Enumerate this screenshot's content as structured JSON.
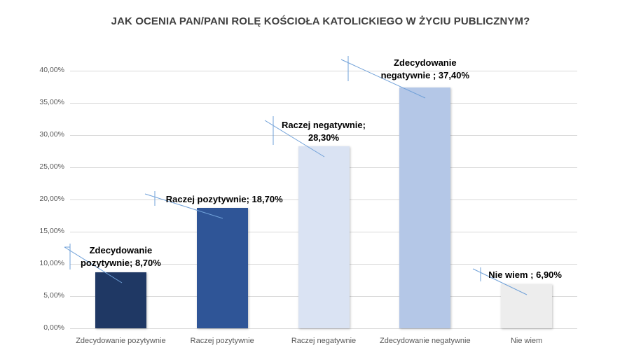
{
  "chart_data": {
    "type": "bar",
    "title": "JAK OCENIA PAN/PANI ROLĘ KOŚCIOŁA KATOLICKIEGO W ŻYCIU PUBLICZNYM?",
    "categories": [
      "Zdecydowanie pozytywnie",
      "Raczej pozytywnie",
      "Raczej negatywnie",
      "Zdecydowanie negatywnie",
      "Nie wiem"
    ],
    "values": [
      8.7,
      18.7,
      28.3,
      37.4,
      6.9
    ],
    "unit": "%",
    "colors": [
      "#1f3864",
      "#2f5597",
      "#dae3f3",
      "#b4c7e7",
      "#ededed"
    ],
    "data_labels": [
      [
        "Zdecydowanie",
        "pozytywnie; 8,70%"
      ],
      [
        "Raczej pozytywnie; 18,70%"
      ],
      [
        "Raczej negatywnie;",
        "28,30%"
      ],
      [
        "Zdecydowanie",
        "negatywnie ; 37,40%"
      ],
      [
        "Nie wiem ; 6,90%"
      ]
    ],
    "xlabel": "",
    "ylabel": "",
    "ylim": [
      0,
      40
    ],
    "yticks": [
      "0,00%",
      "5,00%",
      "10,00%",
      "15,00%",
      "20,00%",
      "25,00%",
      "30,00%",
      "35,00%",
      "40,00%"
    ],
    "grid": true,
    "legend": "none"
  }
}
